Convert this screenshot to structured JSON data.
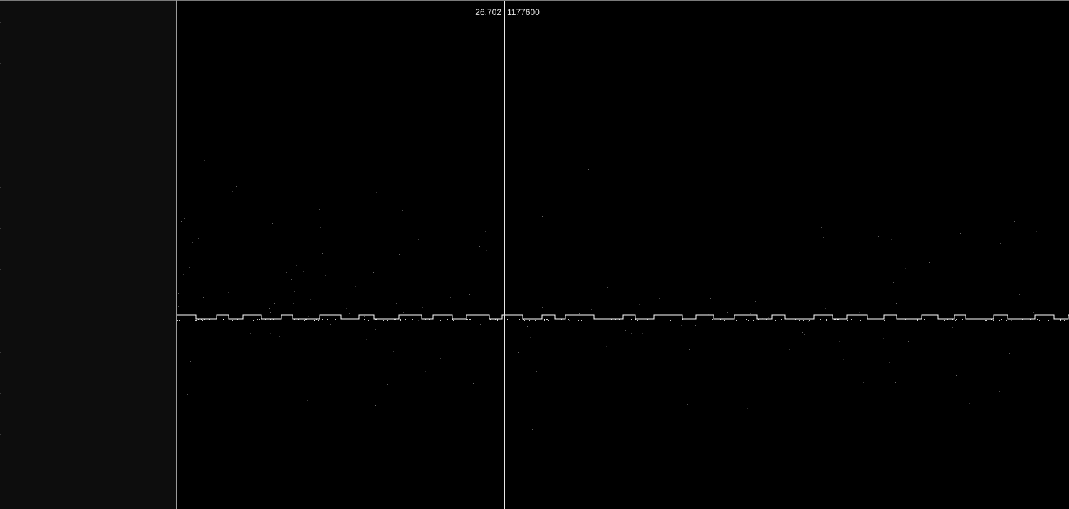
{
  "cursor": {
    "time": "26.702",
    "sample": "1177600"
  },
  "colors": {
    "background": "#000000",
    "left_panel": "#0d0d0d",
    "signal": "#ffffff",
    "cursor": "#e8e8e8"
  }
}
